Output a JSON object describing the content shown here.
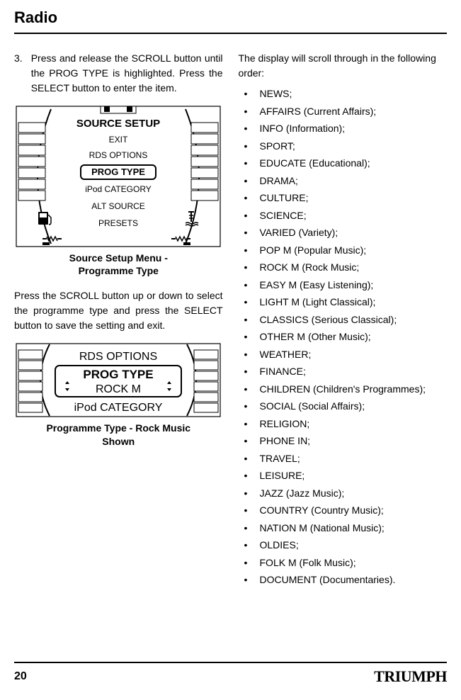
{
  "header": {
    "title": "Radio"
  },
  "left": {
    "step_num": "3.",
    "step_text": "Press and release the SCROLL button until the PROG TYPE is highlighted. Press the SELECT button to enter the item.",
    "fig1": {
      "title": "SOURCE SETUP",
      "items": [
        "EXIT",
        "RDS OPTIONS",
        "PROG TYPE",
        "iPod CATEGORY",
        "ALT SOURCE",
        "PRESETS"
      ],
      "highlight_index": 2
    },
    "caption1_line1": "Source Setup Menu -",
    "caption1_line2": "Programme Type",
    "para2": "Press the SCROLL button up or down to select the programme type and press the SELECT button to save the setting and exit.",
    "fig2": {
      "above": "RDS OPTIONS",
      "main": "PROG TYPE",
      "sub": "ROCK M",
      "below": "iPod CATEGORY"
    },
    "caption2_line1": "Programme Type - Rock Music",
    "caption2_line2": "Shown"
  },
  "right": {
    "intro": "The display will scroll through in the following order:",
    "items": [
      "NEWS;",
      "AFFAIRS (Current Affairs);",
      "INFO (Information);",
      "SPORT;",
      "EDUCATE (Educational);",
      "DRAMA;",
      "CULTURE;",
      "SCIENCE;",
      "VARIED (Variety);",
      "POP M (Popular Music);",
      "ROCK M (Rock Music;",
      "EASY M (Easy Listening);",
      "LIGHT M (Light Classical);",
      "CLASSICS (Serious Classical);",
      "OTHER M (Other Music);",
      "WEATHER;",
      "FINANCE;",
      "CHILDREN (Children's Programmes);",
      "SOCIAL (Social Affairs);",
      "RELIGION;",
      "PHONE IN;",
      "TRAVEL;",
      "LEISURE;",
      "JAZZ (Jazz Music);",
      "COUNTRY (Country Music);",
      "NATION M (National Music);",
      "OLDIES;",
      "FOLK M (Folk Music);",
      "DOCUMENT (Documentaries)."
    ]
  },
  "footer": {
    "page": "20",
    "brand": "TRIUMPH"
  }
}
